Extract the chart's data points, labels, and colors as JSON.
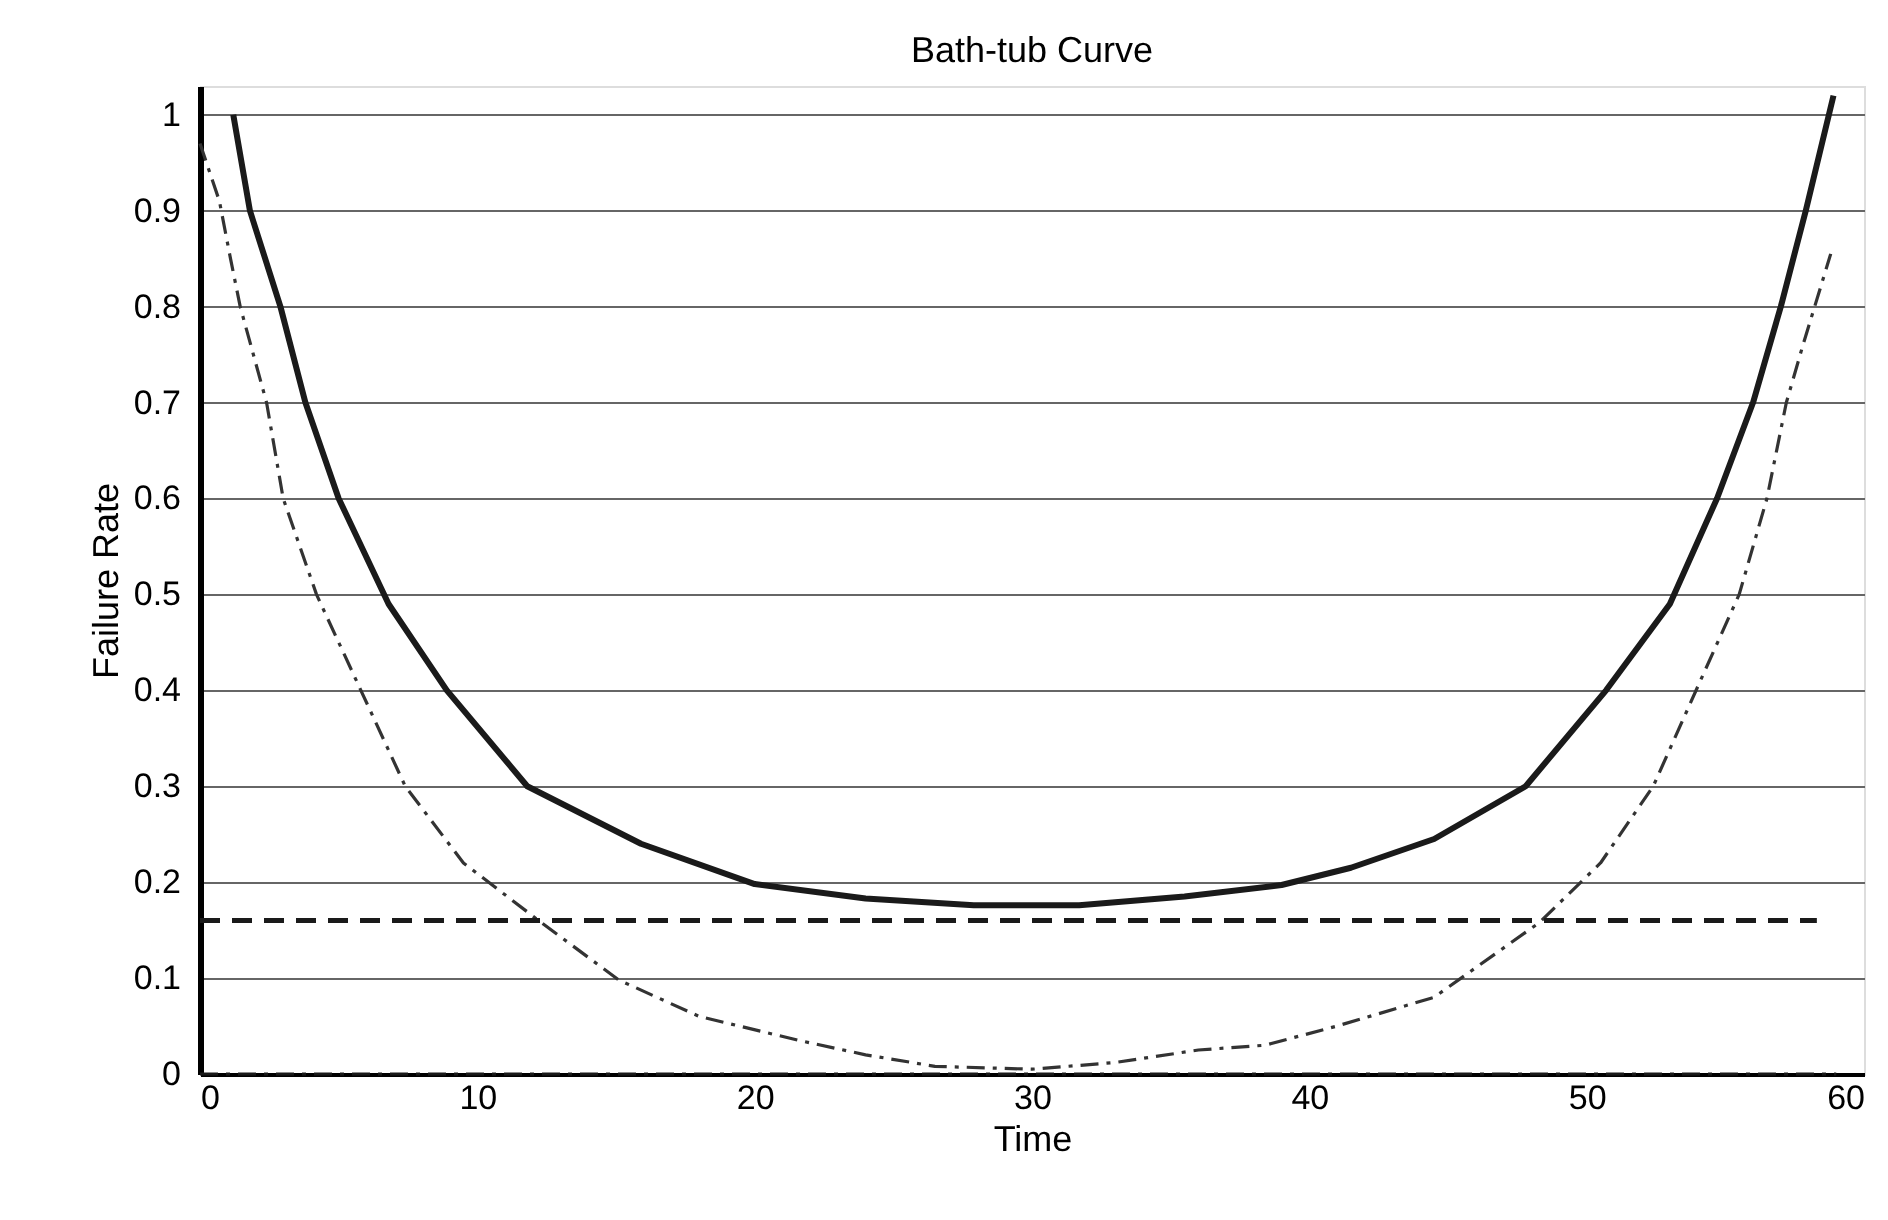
{
  "chart_data": {
    "type": "line",
    "title": "Bath-tub Curve",
    "xlabel": "Time",
    "ylabel": "Failure Rate",
    "xlim": [
      0,
      60
    ],
    "xticks": [
      0,
      10,
      20,
      30,
      40,
      50,
      60
    ],
    "ylim": [
      0,
      1.03
    ],
    "yticks": [
      0,
      0.1,
      0.2,
      0.3,
      0.4,
      0.5,
      0.6,
      0.7,
      0.8,
      0.9,
      1
    ],
    "grid": "y",
    "series": [
      {
        "color": "#1a1a1a",
        "line_style": "solid",
        "x": [
          1.2,
          1.8,
          2.9,
          3.8,
          5.0,
          6.8,
          8.9,
          11.8,
          15.9,
          20.0,
          24.0,
          27.9,
          31.7,
          35.5,
          39.0,
          41.5,
          44.5,
          47.8,
          50.7,
          53.0,
          54.7,
          56.0,
          57.0,
          57.9,
          58.9
        ],
        "values": [
          1.0,
          0.9,
          0.8,
          0.7,
          0.6,
          0.49,
          0.4,
          0.3,
          0.24,
          0.198,
          0.183,
          0.176,
          0.176,
          0.185,
          0.197,
          0.215,
          0.245,
          0.3,
          0.4,
          0.49,
          0.6,
          0.7,
          0.8,
          0.9,
          1.02
        ]
      },
      {
        "color": "#333333",
        "line_style": "dashdot",
        "x": [
          0,
          0.7,
          1.1,
          1.45,
          2.4,
          3.0,
          4.2,
          5.8,
          7.4,
          9.5,
          12.3,
          15.1,
          18.0,
          21.6,
          24.0,
          26.5,
          30.0,
          33.0,
          36.0,
          38.4,
          41.0,
          44.5,
          48.3,
          50.5,
          52.4,
          54.1,
          55.5,
          56.5,
          57.2,
          57.8,
          58.8
        ],
        "values": [
          0.97,
          0.91,
          0.85,
          0.8,
          0.7,
          0.6,
          0.5,
          0.4,
          0.3,
          0.22,
          0.158,
          0.098,
          0.06,
          0.035,
          0.02,
          0.008,
          0.005,
          0.012,
          0.025,
          0.03,
          0.05,
          0.08,
          0.158,
          0.22,
          0.3,
          0.41,
          0.5,
          0.6,
          0.7,
          0.76,
          0.855
        ]
      },
      {
        "color": "#1a1a1a",
        "line_style": "dashed",
        "x": [
          0,
          58.3
        ],
        "values": [
          0.16,
          0.16
        ]
      },
      {
        "color": "#1a1a1a",
        "line_style": "dashdot",
        "x": [
          0,
          59
        ],
        "values": [
          0,
          0
        ]
      }
    ]
  }
}
